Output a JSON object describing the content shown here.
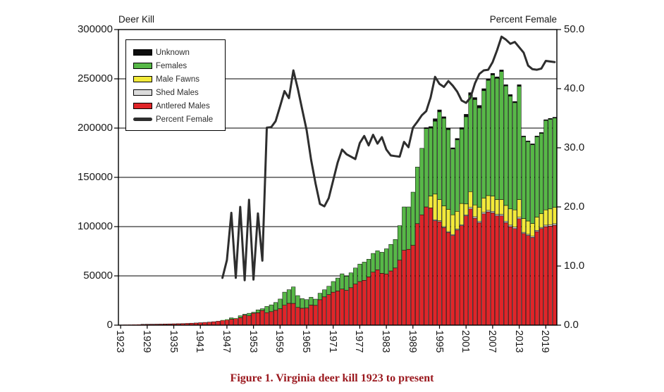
{
  "figure": {
    "caption": "Figure 1. Virginia deer kill 1923 to present",
    "caption_color": "#9a161c",
    "background": "#ffffff"
  },
  "chart_data": {
    "type": "stacked-bar+line",
    "left_axis_title": "Deer Kill",
    "right_axis_title": "Percent Female",
    "y_left_ticks": [
      {
        "label": "0",
        "value": 0
      },
      {
        "label": "50000",
        "value": 50000
      },
      {
        "label": "100000",
        "value": 100000
      },
      {
        "label": "150000",
        "value": 150000
      },
      {
        "label": "200000",
        "value": 200000
      },
      {
        "label": "250000",
        "value": 250000
      },
      {
        "label": "300000",
        "value": 300000
      }
    ],
    "y_right_ticks": [
      {
        "label": "0.0",
        "value": 0
      },
      {
        "label": "10.0",
        "value": 10
      },
      {
        "label": "20.0",
        "value": 20
      },
      {
        "label": "30.0",
        "value": 30
      },
      {
        "label": "40.0",
        "value": 40
      },
      {
        "label": "50.0",
        "value": 50
      }
    ],
    "x_ticks": [
      "1923",
      "1929",
      "1935",
      "1941",
      "1947",
      "1953",
      "1959",
      "1965",
      "1971",
      "1977",
      "1983",
      "1989",
      "1995",
      "2001",
      "2007",
      "2013",
      "2019"
    ],
    "y_left_max": 300000,
    "y_right_max": 50,
    "grid": true,
    "legend_position": "top-left-inside",
    "legend": [
      {
        "label": "Unknown",
        "color": "#0d0d0d",
        "type": "bar"
      },
      {
        "label": "Females",
        "color": "#57b847",
        "type": "bar"
      },
      {
        "label": "Male Fawns",
        "color": "#f2ea3a",
        "type": "bar"
      },
      {
        "label": "Shed Males",
        "color": "#dcdcdc",
        "type": "bar"
      },
      {
        "label": "Antlered Males",
        "color": "#e02529",
        "type": "bar"
      },
      {
        "label": "Percent Female",
        "color": "#2e2e2e",
        "type": "line"
      }
    ],
    "years": [
      1923,
      1924,
      1925,
      1926,
      1927,
      1928,
      1929,
      1930,
      1931,
      1932,
      1933,
      1934,
      1935,
      1936,
      1937,
      1938,
      1939,
      1940,
      1941,
      1942,
      1943,
      1944,
      1945,
      1946,
      1947,
      1948,
      1949,
      1950,
      1951,
      1952,
      1953,
      1954,
      1955,
      1956,
      1957,
      1958,
      1959,
      1960,
      1961,
      1962,
      1963,
      1964,
      1965,
      1966,
      1967,
      1968,
      1969,
      1970,
      1971,
      1972,
      1973,
      1974,
      1975,
      1976,
      1977,
      1978,
      1979,
      1980,
      1981,
      1982,
      1983,
      1984,
      1985,
      1986,
      1987,
      1988,
      1989,
      1990,
      1991,
      1992,
      1993,
      1994,
      1995,
      1996,
      1997,
      1998,
      1999,
      2000,
      2001,
      2002,
      2003,
      2004,
      2005,
      2006,
      2007,
      2008,
      2009,
      2010,
      2011,
      2012,
      2013,
      2014,
      2015,
      2016,
      2017,
      2018,
      2019,
      2020,
      2021
    ],
    "series": [
      {
        "name": "Antlered Males",
        "color": "#e02529",
        "values": [
          400,
          500,
          550,
          650,
          750,
          850,
          950,
          1000,
          1050,
          1100,
          1200,
          1300,
          1400,
          1500,
          1600,
          1800,
          2000,
          2200,
          2500,
          2800,
          3100,
          3500,
          4000,
          4800,
          5300,
          6000,
          6600,
          7600,
          10200,
          9500,
          12100,
          12600,
          14900,
          12700,
          13700,
          15100,
          16700,
          20200,
          22200,
          22100,
          18000,
          17200,
          17400,
          20400,
          20100,
          25800,
          28700,
          31000,
          33500,
          34700,
          36600,
          35300,
          38000,
          41700,
          44300,
          45500,
          49000,
          53800,
          56200,
          52600,
          52000,
          55000,
          58000,
          66000,
          76000,
          77000,
          81000,
          103000,
          112000,
          120000,
          119000,
          106000,
          105000,
          99000,
          94000,
          91000,
          96500,
          101000,
          111000,
          118000,
          108500,
          104000,
          113000,
          115000,
          114000,
          111000,
          111000,
          104000,
          100000,
          98000,
          108000,
          93000,
          91000,
          89000,
          95000,
          98000,
          100000,
          100500,
          101400
        ]
      },
      {
        "name": "Shed Males",
        "color": "#dcdcdc",
        "values": [
          0,
          0,
          0,
          0,
          0,
          0,
          0,
          0,
          0,
          0,
          0,
          0,
          0,
          0,
          0,
          0,
          0,
          0,
          0,
          0,
          0,
          0,
          0,
          0,
          0,
          0,
          0,
          0,
          0,
          0,
          0,
          0,
          0,
          0,
          0,
          0,
          0,
          0,
          0,
          0,
          0,
          0,
          0,
          0,
          0,
          0,
          0,
          0,
          0,
          0,
          0,
          0,
          0,
          0,
          0,
          0,
          0,
          0,
          0,
          0,
          0,
          0,
          0,
          0,
          0,
          0,
          0,
          0,
          0,
          0,
          0,
          1000,
          1000,
          1000,
          1000,
          1000,
          1000,
          1000,
          1000,
          1500,
          1500,
          1500,
          1500,
          1500,
          1500,
          1500,
          1500,
          1500,
          1500,
          1500,
          1500,
          1200,
          1200,
          1200,
          1200,
          1200,
          1500,
          1500,
          1500
        ]
      },
      {
        "name": "Male Fawns",
        "color": "#f2ea3a",
        "values": [
          0,
          0,
          0,
          0,
          0,
          0,
          0,
          0,
          0,
          0,
          0,
          0,
          0,
          0,
          0,
          0,
          0,
          0,
          0,
          0,
          0,
          0,
          0,
          0,
          0,
          0,
          0,
          0,
          0,
          0,
          0,
          0,
          0,
          0,
          0,
          0,
          0,
          0,
          0,
          0,
          0,
          0,
          0,
          0,
          0,
          0,
          0,
          0,
          0,
          0,
          0,
          0,
          0,
          0,
          0,
          0,
          0,
          0,
          0,
          0,
          0,
          0,
          0,
          0,
          0,
          0,
          0,
          0,
          0,
          0,
          12000,
          26000,
          21500,
          21000,
          22500,
          20000,
          18000,
          21500,
          11000,
          16000,
          12000,
          14000,
          14500,
          15000,
          15500,
          15000,
          15000,
          16000,
          16500,
          17500,
          18000,
          14000,
          13500,
          13000,
          13500,
          14000,
          15500,
          16000,
          16600
        ]
      },
      {
        "name": "Females",
        "color": "#57b847",
        "values": [
          0,
          0,
          0,
          0,
          0,
          0,
          0,
          0,
          0,
          0,
          0,
          0,
          0,
          0,
          0,
          0,
          0,
          0,
          0,
          0,
          0,
          0,
          0,
          420,
          650,
          1400,
          600,
          1900,
          850,
          2550,
          1000,
          2900,
          1800,
          6300,
          6900,
          7900,
          9800,
          13300,
          13800,
          16700,
          12000,
          9800,
          8500,
          7900,
          6300,
          6600,
          7200,
          8500,
          10800,
          13100,
          15500,
          14400,
          15100,
          16300,
          17700,
          18500,
          17900,
          19000,
          19300,
          21400,
          25500,
          27000,
          29000,
          35000,
          44000,
          43000,
          54000,
          57500,
          67500,
          79500,
          69000,
          74000,
          89000,
          89000,
          81000,
          66800,
          72500,
          75500,
          88500,
          98000,
          107000,
          101000,
          109000,
          117000,
          123000,
          123000,
          130000,
          121300,
          114500,
          108800,
          115000,
          83000,
          80500,
          80000,
          81500,
          81500,
          90700,
          91000,
          90700
        ]
      },
      {
        "name": "Unknown",
        "color": "#0d0d0d",
        "values": [
          0,
          0,
          0,
          0,
          0,
          0,
          0,
          0,
          0,
          0,
          0,
          0,
          0,
          0,
          0,
          0,
          0,
          0,
          0,
          0,
          0,
          0,
          0,
          0,
          0,
          0,
          0,
          0,
          0,
          0,
          0,
          0,
          0,
          0,
          0,
          0,
          0,
          0,
          0,
          0,
          0,
          0,
          0,
          0,
          0,
          0,
          0,
          0,
          0,
          0,
          0,
          0,
          0,
          0,
          0,
          0,
          0,
          0,
          0,
          0,
          0,
          0,
          0,
          0,
          0,
          0,
          0,
          0,
          0,
          1000,
          1500,
          2500,
          2000,
          1500,
          1500,
          1200,
          1500,
          1500,
          2500,
          2500,
          2000,
          2500,
          2000,
          1500,
          1500,
          1500,
          1500,
          1200,
          1500,
          1200,
          1500,
          800,
          800,
          800,
          800,
          800,
          800,
          800,
          800
        ]
      }
    ],
    "line": {
      "name": "Percent Female",
      "color": "#2e2e2e",
      "axis": "right",
      "values": [
        null,
        null,
        null,
        null,
        null,
        null,
        null,
        null,
        null,
        null,
        null,
        null,
        null,
        null,
        null,
        null,
        null,
        null,
        null,
        null,
        null,
        null,
        null,
        8.0,
        11.0,
        19.0,
        8.0,
        20.0,
        7.6,
        21.2,
        7.7,
        18.9,
        10.9,
        33.4,
        33.5,
        34.5,
        37.0,
        39.6,
        38.4,
        43.1,
        40.0,
        36.5,
        33.0,
        28.0,
        24.0,
        20.5,
        20.1,
        21.5,
        24.5,
        27.5,
        29.7,
        28.9,
        28.5,
        28.1,
        30.8,
        32.0,
        30.4,
        32.2,
        30.7,
        31.8,
        29.7,
        28.7,
        28.6,
        28.5,
        31.0,
        30.1,
        33.4,
        34.4,
        35.5,
        36.2,
        38.5,
        42.0,
        40.8,
        40.3,
        41.3,
        40.5,
        39.5,
        38.0,
        37.6,
        38.5,
        40.9,
        42.5,
        43.1,
        43.2,
        44.5,
        46.5,
        48.8,
        48.3,
        47.6,
        47.9,
        47.0,
        46.1,
        43.9,
        43.3,
        43.2,
        43.4,
        44.7,
        44.6,
        44.5
      ]
    }
  }
}
